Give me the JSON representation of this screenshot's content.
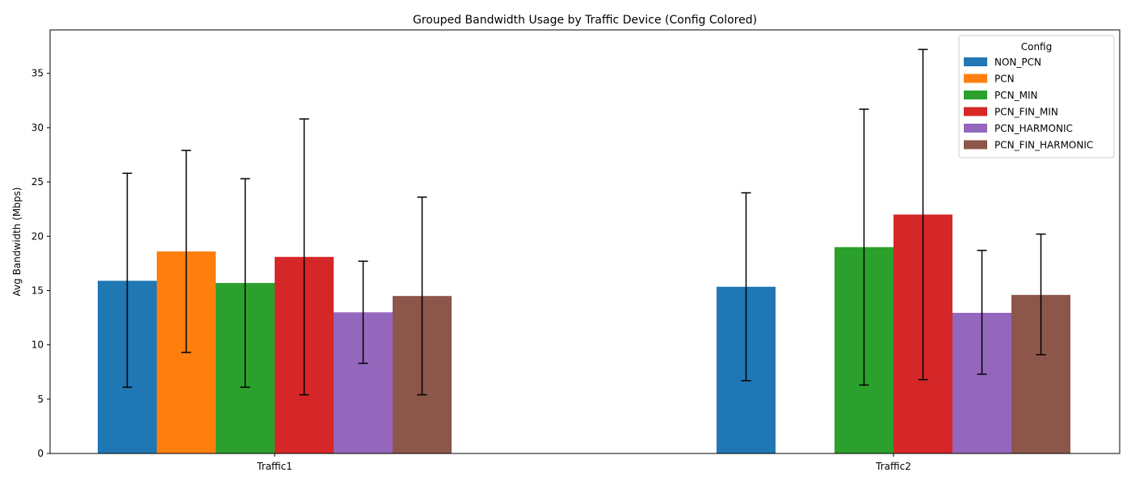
{
  "chart_data": {
    "type": "bar",
    "title": "Grouped Bandwidth Usage by Traffic Device (Config Colored)",
    "xlabel": "",
    "ylabel": "Avg Bandwidth (Mbps)",
    "ylim": [
      0,
      39
    ],
    "yticks": [
      0,
      5,
      10,
      15,
      20,
      25,
      30,
      35
    ],
    "categories": [
      "Traffic1",
      "Traffic2"
    ],
    "legend_title": "Config",
    "legend_position": "top-right",
    "grid": false,
    "series": [
      {
        "name": "NON_PCN",
        "color": "#1f77b4",
        "values": [
          15.9,
          15.35
        ],
        "err_low": [
          6.1,
          6.7
        ],
        "err_high": [
          25.8,
          24.0
        ]
      },
      {
        "name": "PCN",
        "color": "#ff7f0e",
        "values": [
          18.6,
          null
        ],
        "err_low": [
          9.3,
          null
        ],
        "err_high": [
          27.9,
          null
        ]
      },
      {
        "name": "PCN_MIN",
        "color": "#2ca02c",
        "values": [
          15.7,
          19.0
        ],
        "err_low": [
          6.1,
          6.3
        ],
        "err_high": [
          25.3,
          31.7
        ]
      },
      {
        "name": "PCN_FIN_MIN",
        "color": "#d62728",
        "values": [
          18.1,
          22.0
        ],
        "err_low": [
          5.4,
          6.8
        ],
        "err_high": [
          30.8,
          37.2
        ]
      },
      {
        "name": "PCN_HARMONIC",
        "color": "#9467bd",
        "values": [
          13.0,
          12.95
        ],
        "err_low": [
          8.3,
          7.3
        ],
        "err_high": [
          17.7,
          18.7
        ]
      },
      {
        "name": "PCN_FIN_HARMONIC",
        "color": "#8c564b",
        "values": [
          14.5,
          14.6
        ],
        "err_low": [
          5.4,
          9.1
        ],
        "err_high": [
          23.6,
          20.2
        ]
      }
    ]
  }
}
